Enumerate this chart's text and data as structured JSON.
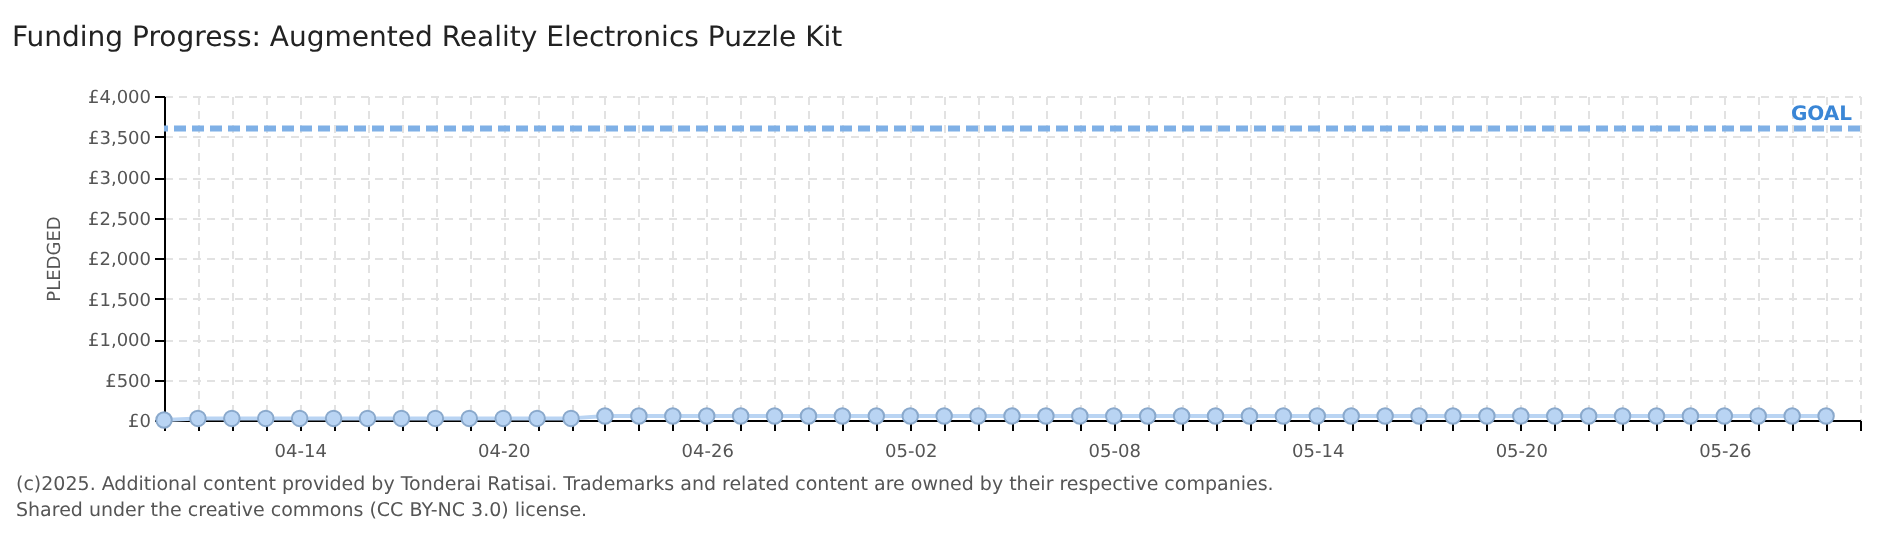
{
  "chart_data": {
    "type": "line",
    "title": "Funding Progress: Augmented Reality Electronics Puzzle Kit",
    "ylabel": "PLEDGED",
    "x": [
      "--04-10",
      "--04-11",
      "--04-12",
      "--04-13",
      "--04-14",
      "--04-15",
      "--04-16",
      "--04-17",
      "--04-18",
      "--04-19",
      "--04-20",
      "--04-21",
      "--04-22",
      "--04-23",
      "--04-24",
      "--04-25",
      "--04-26",
      "--04-27",
      "--04-28",
      "--04-29",
      "--04-30",
      "--05-01",
      "--05-02",
      "--05-03",
      "--05-04",
      "--05-05",
      "--05-06",
      "--05-07",
      "--05-08",
      "--05-09",
      "--05-10",
      "--05-11",
      "--05-12",
      "--05-13",
      "--05-14",
      "--05-15",
      "--05-16",
      "--05-17",
      "--05-18",
      "--05-19",
      "--05-20",
      "--05-21",
      "--05-22",
      "--05-23",
      "--05-24",
      "--05-25",
      "--05-26",
      "--05-27",
      "--05-28",
      "--05-29"
    ],
    "series": [
      {
        "color": "#b9d4f3",
        "values": [
          0,
          20,
          20,
          20,
          20,
          20,
          20,
          20,
          20,
          20,
          20,
          20,
          20,
          50,
          50,
          50,
          50,
          50,
          50,
          50,
          50,
          50,
          50,
          50,
          50,
          50,
          50,
          50,
          50,
          50,
          50,
          50,
          50,
          50,
          50,
          50,
          50,
          50,
          50,
          50,
          50,
          50,
          50,
          50,
          50,
          50,
          50,
          50,
          50,
          50
        ]
      }
    ],
    "xlim": [
      "--04-10",
      "--05-30"
    ],
    "xticks": [
      {
        "value": "--04-10",
        "label": null
      },
      {
        "value": "--04-11",
        "label": null
      },
      {
        "value": "--04-12",
        "label": null
      },
      {
        "value": "--04-13",
        "label": null
      },
      {
        "value": "--04-14",
        "label": "04-14"
      },
      {
        "value": "--04-15",
        "label": null
      },
      {
        "value": "--04-16",
        "label": null
      },
      {
        "value": "--04-17",
        "label": null
      },
      {
        "value": "--04-18",
        "label": null
      },
      {
        "value": "--04-19",
        "label": null
      },
      {
        "value": "--04-20",
        "label": "04-20"
      },
      {
        "value": "--04-21",
        "label": null
      },
      {
        "value": "--04-22",
        "label": null
      },
      {
        "value": "--04-23",
        "label": null
      },
      {
        "value": "--04-24",
        "label": null
      },
      {
        "value": "--04-25",
        "label": null
      },
      {
        "value": "--04-26",
        "label": "04-26"
      },
      {
        "value": "--04-27",
        "label": null
      },
      {
        "value": "--04-28",
        "label": null
      },
      {
        "value": "--04-29",
        "label": null
      },
      {
        "value": "--04-30",
        "label": null
      },
      {
        "value": "--05-01",
        "label": null
      },
      {
        "value": "--05-02",
        "label": "05-02"
      },
      {
        "value": "--05-03",
        "label": null
      },
      {
        "value": "--05-04",
        "label": null
      },
      {
        "value": "--05-05",
        "label": null
      },
      {
        "value": "--05-06",
        "label": null
      },
      {
        "value": "--05-07",
        "label": null
      },
      {
        "value": "--05-08",
        "label": "05-08"
      },
      {
        "value": "--05-09",
        "label": null
      },
      {
        "value": "--05-10",
        "label": null
      },
      {
        "value": "--05-11",
        "label": null
      },
      {
        "value": "--05-12",
        "label": null
      },
      {
        "value": "--05-13",
        "label": null
      },
      {
        "value": "--05-14",
        "label": "05-14"
      },
      {
        "value": "--05-15",
        "label": null
      },
      {
        "value": "--05-16",
        "label": null
      },
      {
        "value": "--05-17",
        "label": null
      },
      {
        "value": "--05-18",
        "label": null
      },
      {
        "value": "--05-19",
        "label": null
      },
      {
        "value": "--05-20",
        "label": "05-20"
      },
      {
        "value": "--05-21",
        "label": null
      },
      {
        "value": "--05-22",
        "label": null
      },
      {
        "value": "--05-23",
        "label": null
      },
      {
        "value": "--05-24",
        "label": null
      },
      {
        "value": "--05-25",
        "label": null
      },
      {
        "value": "--05-26",
        "label": "05-26"
      },
      {
        "value": "--05-27",
        "label": null
      },
      {
        "value": "--05-28",
        "label": null
      },
      {
        "value": "--05-29",
        "label": null
      },
      {
        "value": "--05-30",
        "label": null
      }
    ],
    "ylim": [
      0,
      4000
    ],
    "yticks": [
      {
        "value": 0,
        "label": "£0"
      },
      {
        "value": 500,
        "label": "£500"
      },
      {
        "value": 1000,
        "label": "£1,000"
      },
      {
        "value": 1500,
        "label": "£1,500"
      },
      {
        "value": 2000,
        "label": "£2,000"
      },
      {
        "value": 2500,
        "label": "£2,500"
      },
      {
        "value": 3000,
        "label": "£3,000"
      },
      {
        "value": 3500,
        "label": "£3,500"
      },
      {
        "value": 4000,
        "label": "£4,000"
      }
    ],
    "ref_lines": [
      {
        "axis": "y",
        "value": 3600,
        "label": "GOAL",
        "color": "#7fb0e6",
        "line_style": "dashed"
      }
    ],
    "grid": true,
    "marker": "circle",
    "line_style": "solid",
    "annotations": [
      "(c)2025. Additional content provided by Tonderai Ratisai. Trademarks and related content are owned by their respective companies.",
      "Shared under the creative commons (CC BY-NC 3.0) license."
    ]
  }
}
